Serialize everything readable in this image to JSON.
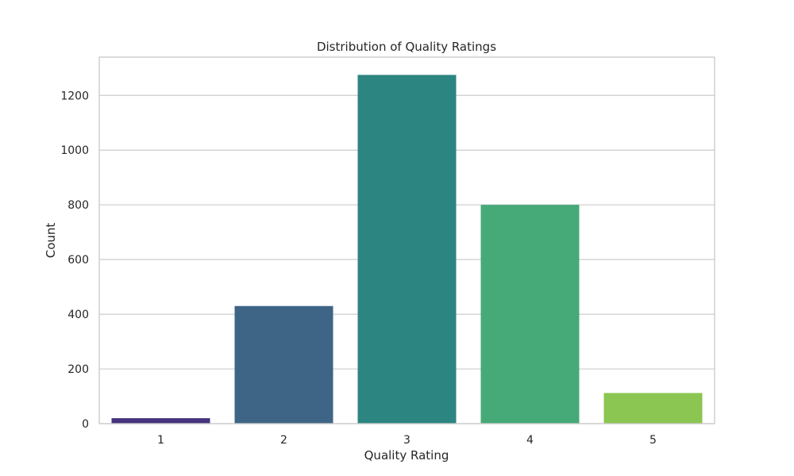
{
  "chart_data": {
    "type": "bar",
    "title": "Distribution of Quality Ratings",
    "xlabel": "Quality Rating",
    "ylabel": "Count",
    "categories": [
      "1",
      "2",
      "3",
      "4",
      "5"
    ],
    "values": [
      20,
      430,
      1275,
      800,
      112
    ],
    "colors": [
      "#46337e",
      "#3e6586",
      "#2c8580",
      "#46a978",
      "#8bc552"
    ],
    "ylim": [
      0,
      1340
    ],
    "yticks": [
      0,
      200,
      400,
      600,
      800,
      1000,
      1200
    ],
    "grid": true,
    "grid_axis": "y",
    "legend": false
  }
}
